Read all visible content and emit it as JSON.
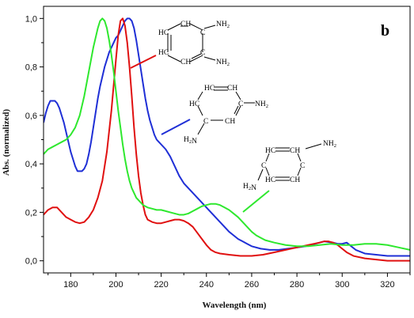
{
  "chart_data": {
    "type": "line",
    "panel_label": "b",
    "xlabel": "Wavelength (nm)",
    "ylabel": "Abs. (normalized)",
    "xlim": [
      168,
      330
    ],
    "ylim": [
      -0.05,
      1.05
    ],
    "x_ticks": [
      180,
      200,
      220,
      240,
      260,
      280,
      300,
      320
    ],
    "y_ticks": [
      0.0,
      0.2,
      0.4,
      0.6,
      0.8,
      1.0
    ],
    "y_tick_labels": [
      "0,0",
      "0,2",
      "0,4",
      "0,6",
      "0,8",
      "1,0"
    ],
    "grid": false,
    "legend": "none",
    "series": [
      {
        "color": "#1f2fd6",
        "points": [
          [
            168,
            0.57
          ],
          [
            169,
            0.61
          ],
          [
            170,
            0.64
          ],
          [
            171,
            0.66
          ],
          [
            172,
            0.66
          ],
          [
            173,
            0.66
          ],
          [
            174,
            0.65
          ],
          [
            175,
            0.63
          ],
          [
            176,
            0.6
          ],
          [
            177,
            0.57
          ],
          [
            178,
            0.53
          ],
          [
            179,
            0.49
          ],
          [
            180,
            0.45
          ],
          [
            181,
            0.42
          ],
          [
            182,
            0.39
          ],
          [
            183,
            0.37
          ],
          [
            184,
            0.37
          ],
          [
            185,
            0.37
          ],
          [
            186,
            0.38
          ],
          [
            187,
            0.4
          ],
          [
            188,
            0.44
          ],
          [
            189,
            0.49
          ],
          [
            190,
            0.55
          ],
          [
            191,
            0.61
          ],
          [
            192,
            0.67
          ],
          [
            193,
            0.72
          ],
          [
            194,
            0.76
          ],
          [
            195,
            0.8
          ],
          [
            196,
            0.83
          ],
          [
            197,
            0.86
          ],
          [
            198,
            0.88
          ],
          [
            199,
            0.9
          ],
          [
            200,
            0.92
          ],
          [
            201,
            0.93
          ],
          [
            202,
            0.95
          ],
          [
            203,
            0.97
          ],
          [
            204,
            0.99
          ],
          [
            205,
            1.0
          ],
          [
            206,
            1.0
          ],
          [
            207,
            0.99
          ],
          [
            208,
            0.96
          ],
          [
            209,
            0.91
          ],
          [
            210,
            0.85
          ],
          [
            211,
            0.79
          ],
          [
            212,
            0.73
          ],
          [
            213,
            0.67
          ],
          [
            214,
            0.62
          ],
          [
            215,
            0.58
          ],
          [
            216,
            0.55
          ],
          [
            217,
            0.52
          ],
          [
            218,
            0.5
          ],
          [
            219,
            0.49
          ],
          [
            220,
            0.48
          ],
          [
            222,
            0.46
          ],
          [
            224,
            0.43
          ],
          [
            226,
            0.39
          ],
          [
            228,
            0.35
          ],
          [
            230,
            0.32
          ],
          [
            232,
            0.3
          ],
          [
            234,
            0.28
          ],
          [
            236,
            0.26
          ],
          [
            238,
            0.24
          ],
          [
            240,
            0.22
          ],
          [
            242,
            0.2
          ],
          [
            244,
            0.18
          ],
          [
            246,
            0.16
          ],
          [
            248,
            0.14
          ],
          [
            250,
            0.12
          ],
          [
            252,
            0.105
          ],
          [
            254,
            0.09
          ],
          [
            256,
            0.08
          ],
          [
            258,
            0.07
          ],
          [
            260,
            0.06
          ],
          [
            264,
            0.05
          ],
          [
            268,
            0.045
          ],
          [
            272,
            0.045
          ],
          [
            276,
            0.05
          ],
          [
            280,
            0.055
          ],
          [
            284,
            0.06
          ],
          [
            288,
            0.07
          ],
          [
            292,
            0.08
          ],
          [
            296,
            0.075
          ],
          [
            298,
            0.07
          ],
          [
            300,
            0.07
          ],
          [
            302,
            0.075
          ],
          [
            304,
            0.06
          ],
          [
            306,
            0.045
          ],
          [
            310,
            0.03
          ],
          [
            315,
            0.025
          ],
          [
            320,
            0.02
          ],
          [
            330,
            0.02
          ]
        ]
      },
      {
        "color": "#e01010",
        "points": [
          [
            168,
            0.19
          ],
          [
            170,
            0.21
          ],
          [
            172,
            0.22
          ],
          [
            174,
            0.22
          ],
          [
            176,
            0.2
          ],
          [
            178,
            0.18
          ],
          [
            180,
            0.17
          ],
          [
            182,
            0.16
          ],
          [
            184,
            0.155
          ],
          [
            186,
            0.16
          ],
          [
            188,
            0.18
          ],
          [
            190,
            0.21
          ],
          [
            192,
            0.26
          ],
          [
            194,
            0.33
          ],
          [
            196,
            0.45
          ],
          [
            198,
            0.62
          ],
          [
            200,
            0.83
          ],
          [
            201,
            0.93
          ],
          [
            202,
            0.99
          ],
          [
            203,
            1.0
          ],
          [
            204,
            0.97
          ],
          [
            205,
            0.9
          ],
          [
            206,
            0.8
          ],
          [
            207,
            0.68
          ],
          [
            208,
            0.55
          ],
          [
            209,
            0.44
          ],
          [
            210,
            0.35
          ],
          [
            211,
            0.28
          ],
          [
            212,
            0.23
          ],
          [
            213,
            0.19
          ],
          [
            214,
            0.17
          ],
          [
            216,
            0.16
          ],
          [
            218,
            0.155
          ],
          [
            220,
            0.155
          ],
          [
            222,
            0.16
          ],
          [
            224,
            0.165
          ],
          [
            226,
            0.17
          ],
          [
            228,
            0.17
          ],
          [
            230,
            0.165
          ],
          [
            232,
            0.155
          ],
          [
            234,
            0.14
          ],
          [
            236,
            0.115
          ],
          [
            238,
            0.09
          ],
          [
            240,
            0.065
          ],
          [
            242,
            0.045
          ],
          [
            244,
            0.035
          ],
          [
            246,
            0.03
          ],
          [
            250,
            0.025
          ],
          [
            255,
            0.02
          ],
          [
            260,
            0.02
          ],
          [
            265,
            0.025
          ],
          [
            270,
            0.035
          ],
          [
            275,
            0.045
          ],
          [
            280,
            0.055
          ],
          [
            285,
            0.065
          ],
          [
            290,
            0.075
          ],
          [
            292,
            0.08
          ],
          [
            294,
            0.08
          ],
          [
            296,
            0.075
          ],
          [
            298,
            0.065
          ],
          [
            300,
            0.05
          ],
          [
            302,
            0.035
          ],
          [
            305,
            0.02
          ],
          [
            310,
            0.01
          ],
          [
            315,
            0.005
          ],
          [
            320,
            0.0
          ],
          [
            330,
            0.0
          ]
        ]
      },
      {
        "color": "#2ee82e",
        "points": [
          [
            168,
            0.44
          ],
          [
            170,
            0.46
          ],
          [
            172,
            0.47
          ],
          [
            174,
            0.48
          ],
          [
            176,
            0.49
          ],
          [
            178,
            0.5
          ],
          [
            180,
            0.52
          ],
          [
            182,
            0.55
          ],
          [
            184,
            0.6
          ],
          [
            186,
            0.68
          ],
          [
            188,
            0.78
          ],
          [
            190,
            0.88
          ],
          [
            192,
            0.96
          ],
          [
            193,
            0.99
          ],
          [
            194,
            1.0
          ],
          [
            195,
            0.99
          ],
          [
            196,
            0.96
          ],
          [
            197,
            0.91
          ],
          [
            198,
            0.85
          ],
          [
            199,
            0.78
          ],
          [
            200,
            0.7
          ],
          [
            201,
            0.62
          ],
          [
            202,
            0.55
          ],
          [
            203,
            0.48
          ],
          [
            204,
            0.42
          ],
          [
            205,
            0.37
          ],
          [
            206,
            0.33
          ],
          [
            207,
            0.3
          ],
          [
            208,
            0.28
          ],
          [
            209,
            0.26
          ],
          [
            210,
            0.25
          ],
          [
            212,
            0.23
          ],
          [
            214,
            0.22
          ],
          [
            216,
            0.215
          ],
          [
            218,
            0.21
          ],
          [
            220,
            0.21
          ],
          [
            222,
            0.205
          ],
          [
            224,
            0.2
          ],
          [
            226,
            0.195
          ],
          [
            228,
            0.19
          ],
          [
            230,
            0.19
          ],
          [
            232,
            0.195
          ],
          [
            234,
            0.205
          ],
          [
            236,
            0.215
          ],
          [
            238,
            0.225
          ],
          [
            240,
            0.23
          ],
          [
            242,
            0.235
          ],
          [
            244,
            0.235
          ],
          [
            246,
            0.23
          ],
          [
            248,
            0.22
          ],
          [
            250,
            0.21
          ],
          [
            252,
            0.195
          ],
          [
            254,
            0.18
          ],
          [
            256,
            0.16
          ],
          [
            258,
            0.14
          ],
          [
            260,
            0.12
          ],
          [
            262,
            0.105
          ],
          [
            264,
            0.095
          ],
          [
            266,
            0.085
          ],
          [
            270,
            0.075
          ],
          [
            275,
            0.065
          ],
          [
            280,
            0.06
          ],
          [
            285,
            0.06
          ],
          [
            290,
            0.065
          ],
          [
            295,
            0.07
          ],
          [
            300,
            0.065
          ],
          [
            305,
            0.065
          ],
          [
            310,
            0.07
          ],
          [
            315,
            0.07
          ],
          [
            320,
            0.065
          ],
          [
            325,
            0.055
          ],
          [
            330,
            0.045
          ]
        ]
      }
    ],
    "molecules": [
      {
        "leader_color": "#e01010",
        "left_ring_labels": [
          "HC",
          "HC"
        ],
        "top_ring_label": "CH",
        "bottom_ring_label": "CH",
        "right_ring_labels": [
          "C",
          "C"
        ],
        "substituents": [
          "NH2",
          "NH2"
        ]
      },
      {
        "leader_color": "#1f2fd6",
        "top_ring_labels": [
          "HC",
          "CH"
        ],
        "left_ring_label": "HC",
        "right_ring_label": "C",
        "bottom_ring_labels": [
          "C",
          "CH"
        ],
        "substituents": [
          "NH2",
          "H2N"
        ]
      },
      {
        "leader_color": "#2ee82e",
        "top_ring_labels": [
          "HC",
          "CH"
        ],
        "left_ring_label": "C",
        "right_ring_label": "C",
        "bottom_ring_labels": [
          "HC",
          "CH"
        ],
        "substituents": [
          "NH2",
          "H2N"
        ]
      }
    ]
  }
}
